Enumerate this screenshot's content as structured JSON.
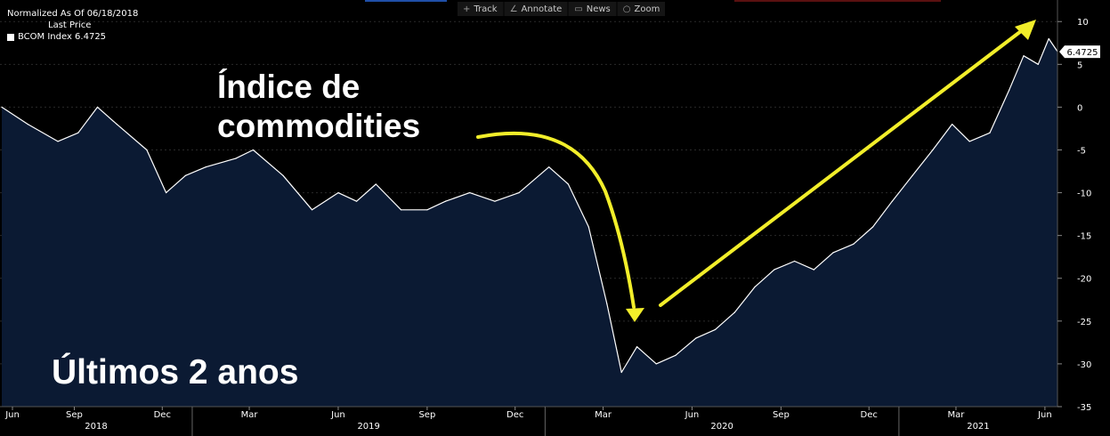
{
  "header": {
    "normalized": "Normalized As Of 06/18/2018",
    "column_label": "Last Price",
    "legend_label": "BCOM Index 6.4725"
  },
  "toolbar": {
    "items": [
      {
        "label": "Track",
        "icon": "crosshair-icon"
      },
      {
        "label": "Annotate",
        "icon": "pencil-icon"
      },
      {
        "label": "News",
        "icon": "news-icon"
      },
      {
        "label": "Zoom",
        "icon": "magnifier-icon"
      }
    ]
  },
  "annotations": {
    "title_line1": "Índice de",
    "title_line2": "commodities",
    "period": "Últimos 2 anos"
  },
  "colors": {
    "background": "#000000",
    "area_fill": "#0b1a33",
    "line": "#ffffff",
    "arrow": "#f2ee2a",
    "grid": "#2a2a2a",
    "accent_blue": "#1f4fa8",
    "accent_red": "#5a1010"
  },
  "chart_data": {
    "type": "area",
    "series_label": "BCOM Index",
    "last_value": "6.4725",
    "ylim": [
      -35,
      12
    ],
    "yticks": [
      "10",
      "5",
      "0",
      "-5",
      "-10",
      "-15",
      "-20",
      "-25",
      "-30",
      "-35"
    ],
    "xaxis_months": [
      "Jun",
      "Sep",
      "Dec",
      "Mar",
      "Jun",
      "Sep",
      "Dec",
      "Mar",
      "Jun",
      "Sep",
      "Dec",
      "Mar",
      "Jun"
    ],
    "xaxis_years": [
      "2018",
      "2019",
      "2020",
      "2021"
    ],
    "grid": true,
    "x": [
      "2018-06-18",
      "2018-07-15",
      "2018-08-15",
      "2018-09-05",
      "2018-09-25",
      "2018-10-15",
      "2018-11-15",
      "2018-12-05",
      "2018-12-25",
      "2019-01-15",
      "2019-02-15",
      "2019-03-05",
      "2019-04-05",
      "2019-05-05",
      "2019-06-01",
      "2019-06-20",
      "2019-07-10",
      "2019-08-05",
      "2019-09-01",
      "2019-09-20",
      "2019-10-15",
      "2019-11-10",
      "2019-12-05",
      "2020-01-05",
      "2020-01-25",
      "2020-02-15",
      "2020-03-05",
      "2020-03-20",
      "2020-04-05",
      "2020-04-25",
      "2020-05-15",
      "2020-06-05",
      "2020-06-25",
      "2020-07-15",
      "2020-08-05",
      "2020-08-25",
      "2020-09-15",
      "2020-10-05",
      "2020-10-25",
      "2020-11-15",
      "2020-12-05",
      "2020-12-25",
      "2021-01-15",
      "2021-02-05",
      "2021-02-25",
      "2021-03-15",
      "2021-04-05",
      "2021-04-25",
      "2021-05-10",
      "2021-05-25",
      "2021-06-05",
      "2021-06-14"
    ],
    "values": [
      0,
      -2,
      -4,
      -3,
      0,
      -2,
      -5,
      -10,
      -8,
      -7,
      -6,
      -5,
      -8,
      -12,
      -10,
      -11,
      -9,
      -12,
      -12,
      -11,
      -10,
      -11,
      -10,
      -7,
      -9,
      -14,
      -23,
      -31,
      -28,
      -30,
      -29,
      -27,
      -26,
      -24,
      -21,
      -19,
      -18,
      -19,
      -17,
      -16,
      -14,
      -11,
      -8,
      -5,
      -2,
      -4,
      -3,
      2,
      6,
      5,
      8,
      6.5
    ]
  }
}
